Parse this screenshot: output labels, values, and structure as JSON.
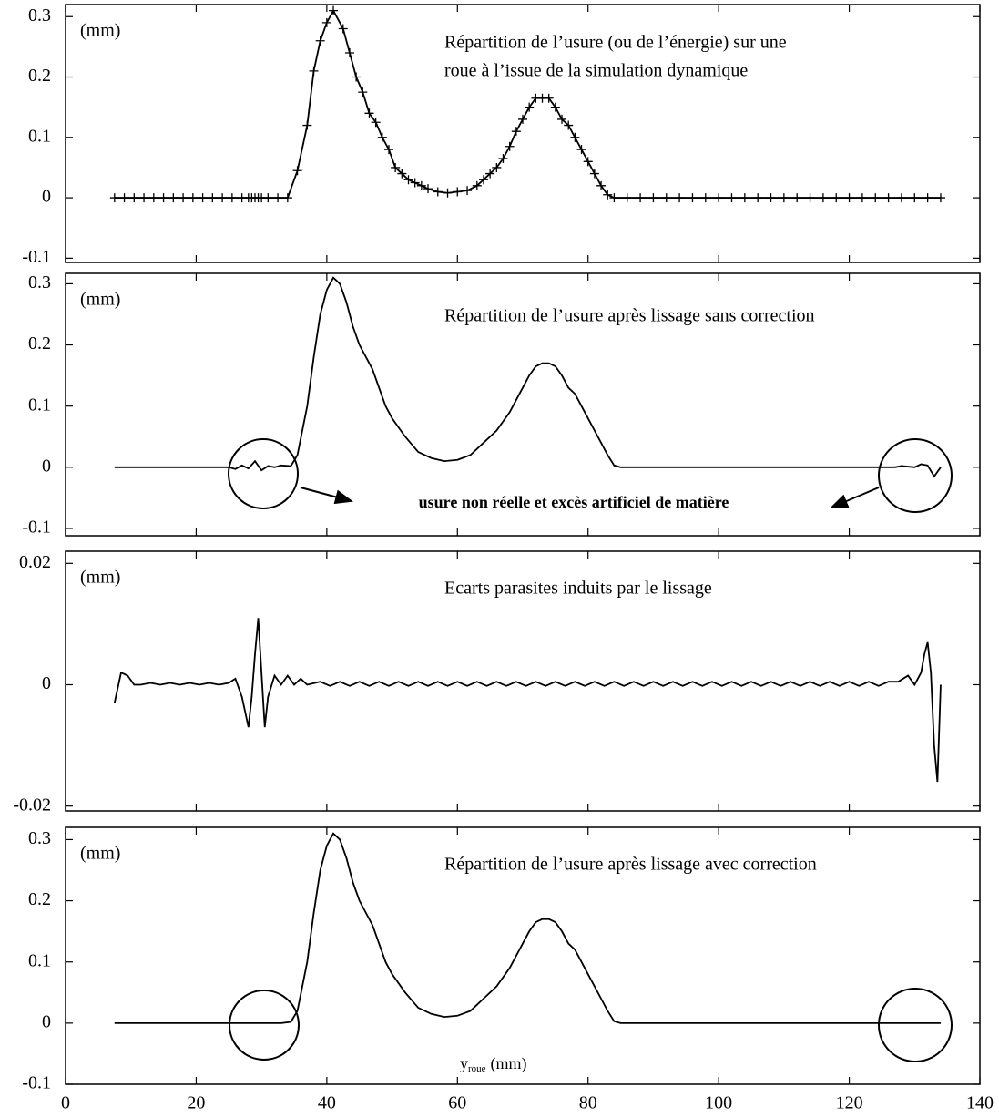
{
  "chart_data": [
    {
      "type": "line",
      "title": [
        "Répartition de l’usure (ou de l’énergie) sur une",
        "roue à l’issue de la simulation dynamique"
      ],
      "ylabel": "(mm)",
      "marker": "+",
      "color": "#000000",
      "xlim": [
        0,
        140
      ],
      "xticks": [
        0,
        20,
        40,
        60,
        80,
        100,
        120,
        140
      ],
      "xtick_labels": false,
      "ylim": [
        -0.107,
        0.32
      ],
      "yticks": [
        -0.1,
        0,
        0.1,
        0.2,
        0.3
      ],
      "x": [
        7.5,
        9,
        10.5,
        12,
        13.5,
        15,
        16.5,
        18,
        19.5,
        21,
        22.5,
        24,
        25.5,
        27,
        28,
        28.5,
        29,
        29.5,
        30,
        31,
        32.5,
        34,
        35.5,
        37,
        38,
        39,
        40,
        41,
        42.5,
        43.5,
        44.5,
        45.5,
        46.5,
        47.5,
        48.5,
        49.5,
        50.5,
        51.5,
        52.5,
        53.5,
        54.5,
        55.5,
        57,
        58.5,
        60,
        61.5,
        63,
        64,
        65,
        66,
        67,
        68,
        69,
        70,
        71,
        72,
        73,
        74,
        75,
        76,
        77,
        78,
        79,
        80,
        81,
        82,
        83,
        84,
        86,
        88,
        90,
        92,
        94,
        96,
        98,
        100,
        102,
        104,
        106,
        108,
        110,
        112,
        114,
        116,
        118,
        120,
        122,
        124,
        126,
        128,
        130,
        132,
        134
      ],
      "values": [
        0,
        0,
        0,
        0,
        0,
        0,
        0,
        0,
        0,
        0,
        0,
        0,
        0,
        0,
        0,
        0,
        0,
        0,
        0,
        0,
        0,
        0,
        0.045,
        0.12,
        0.21,
        0.26,
        0.29,
        0.31,
        0.28,
        0.24,
        0.2,
        0.175,
        0.14,
        0.125,
        0.1,
        0.08,
        0.05,
        0.04,
        0.03,
        0.025,
        0.02,
        0.015,
        0.01,
        0.008,
        0.01,
        0.012,
        0.02,
        0.03,
        0.04,
        0.05,
        0.065,
        0.085,
        0.11,
        0.13,
        0.15,
        0.165,
        0.165,
        0.165,
        0.15,
        0.13,
        0.12,
        0.1,
        0.08,
        0.06,
        0.04,
        0.02,
        0.005,
        0,
        0,
        0,
        0,
        0,
        0,
        0,
        0,
        0,
        0,
        0,
        0,
        0,
        0,
        0,
        0,
        0,
        0,
        0,
        0,
        0,
        0,
        0,
        0,
        0,
        0
      ]
    },
    {
      "type": "line",
      "title": "Répartition de l’usure après lissage sans correction",
      "ylabel": "(mm)",
      "color": "#000000",
      "annotation": "usure non réelle et excès artificiel de matière",
      "xlim": [
        0,
        140
      ],
      "xticks": [
        0,
        20,
        40,
        60,
        80,
        100,
        120,
        140
      ],
      "xtick_labels": false,
      "ylim": [
        -0.112,
        0.317
      ],
      "yticks": [
        -0.1,
        0,
        0.1,
        0.2,
        0.3
      ],
      "x": [
        7.5,
        25,
        26,
        27,
        28,
        29,
        30,
        31,
        32,
        33,
        34.5,
        35.5,
        37,
        38,
        39,
        40,
        41,
        42,
        43,
        44,
        45,
        46,
        47,
        48,
        49,
        50,
        52,
        54,
        56,
        58,
        60,
        62,
        64,
        66,
        68,
        70,
        71,
        72,
        73,
        74,
        75,
        76,
        77,
        78,
        79,
        80,
        81,
        82,
        83,
        84,
        85,
        127,
        128,
        130,
        131,
        132,
        133,
        134
      ],
      "values": [
        0,
        0,
        -0.003,
        0.003,
        -0.002,
        0.01,
        -0.005,
        0.002,
        0,
        0.003,
        0.002,
        0.02,
        0.1,
        0.18,
        0.25,
        0.29,
        0.31,
        0.3,
        0.27,
        0.23,
        0.2,
        0.18,
        0.16,
        0.13,
        0.1,
        0.08,
        0.05,
        0.025,
        0.015,
        0.01,
        0.012,
        0.02,
        0.04,
        0.06,
        0.09,
        0.13,
        0.15,
        0.165,
        0.17,
        0.17,
        0.165,
        0.15,
        0.13,
        0.12,
        0.1,
        0.08,
        0.06,
        0.04,
        0.02,
        0.003,
        0,
        0,
        0.002,
        0,
        0.005,
        0.003,
        -0.015,
        0
      ]
    },
    {
      "type": "line",
      "title": "Ecarts parasites induits par le lissage",
      "ylabel": "(mm)",
      "color": "#000000",
      "xlim": [
        0,
        140
      ],
      "xticks": [
        0,
        20,
        40,
        60,
        80,
        100,
        120,
        140
      ],
      "xtick_labels": false,
      "ylim": [
        -0.0208,
        0.022
      ],
      "yticks": [
        -0.02,
        0,
        0.02
      ],
      "x": [
        7.5,
        8.5,
        9.5,
        10.5,
        11.5,
        13,
        14.5,
        16,
        17.5,
        19,
        20.5,
        22,
        23.5,
        25,
        26,
        27,
        28,
        28.5,
        29,
        29.5,
        30,
        30.5,
        31,
        32,
        33,
        34,
        35,
        36,
        37,
        39,
        40.5,
        42,
        43.5,
        45,
        46.5,
        48,
        49.5,
        51,
        52.5,
        54,
        55.5,
        57,
        58.5,
        60,
        61.5,
        63,
        64.5,
        66,
        67.5,
        69,
        70.5,
        72,
        73.5,
        75,
        76.5,
        78,
        79.5,
        81,
        82.5,
        84,
        85.5,
        87,
        88.5,
        90,
        91.5,
        93,
        94.5,
        96,
        97.5,
        99,
        100.5,
        102,
        103.5,
        105,
        106.5,
        108,
        109.5,
        111,
        112.5,
        114,
        115.5,
        117,
        118.5,
        120,
        121.5,
        123,
        124.5,
        126,
        127.5,
        129,
        130,
        131,
        131.5,
        132,
        132.5,
        133,
        133.5,
        134
      ],
      "values": [
        -0.003,
        0.002,
        0.0015,
        0,
        0,
        0.0003,
        0,
        0.0003,
        0,
        0.0003,
        0,
        0.0003,
        0,
        0.0003,
        0.001,
        -0.002,
        -0.007,
        -0.002,
        0.005,
        0.011,
        0.002,
        -0.007,
        -0.002,
        0.0015,
        0,
        0.0015,
        0,
        0.001,
        0,
        0.0005,
        -0.0002,
        0.0005,
        -0.0002,
        0.0005,
        -0.0002,
        0.0005,
        -0.0002,
        0.0005,
        -0.0002,
        0.0005,
        -0.0002,
        0.0005,
        -0.0002,
        0.0005,
        -0.0002,
        0.0005,
        -0.0002,
        0.0005,
        -0.0002,
        0.0005,
        -0.0002,
        0.0005,
        -0.0002,
        0.0005,
        -0.0002,
        0.0005,
        -0.0002,
        0.0005,
        -0.0002,
        0.0005,
        -0.0002,
        0.0005,
        -0.0002,
        0.0005,
        -0.0002,
        0.0005,
        -0.0002,
        0.0005,
        -0.0002,
        0.0005,
        -0.0002,
        0.0005,
        -0.0002,
        0.0005,
        -0.0002,
        0.0005,
        -0.0002,
        0.0005,
        -0.0002,
        0.0005,
        -0.0002,
        0.0005,
        -0.0002,
        0.0005,
        -0.0002,
        0.0005,
        -0.0002,
        0.0005,
        0.0005,
        0.0015,
        0,
        0.002,
        0.005,
        0.007,
        0.002,
        -0.01,
        -0.016,
        0
      ]
    },
    {
      "type": "line",
      "title": "Répartition de l’usure après lissage avec correction",
      "ylabel": "(mm)",
      "color": "#000000",
      "xlabel_main": "y",
      "xlabel_sub": "roue",
      "xlabel_unit": "(mm)",
      "xlim": [
        0,
        140
      ],
      "xticks": [
        0,
        20,
        40,
        60,
        80,
        100,
        120,
        140
      ],
      "xtick_labels": true,
      "ylim": [
        -0.1,
        0.32
      ],
      "yticks": [
        -0.1,
        0,
        0.1,
        0.2,
        0.3
      ],
      "x": [
        7.5,
        20,
        25,
        33,
        34.5,
        35.5,
        37,
        38,
        39,
        40,
        41,
        42,
        43,
        44,
        45,
        46,
        47,
        48,
        49,
        50,
        52,
        54,
        56,
        58,
        60,
        62,
        64,
        66,
        68,
        70,
        71,
        72,
        73,
        74,
        75,
        76,
        77,
        78,
        79,
        80,
        81,
        82,
        83,
        84,
        85,
        134
      ],
      "values": [
        0,
        0,
        0,
        0,
        0.002,
        0.02,
        0.1,
        0.18,
        0.25,
        0.29,
        0.31,
        0.3,
        0.27,
        0.23,
        0.2,
        0.18,
        0.16,
        0.13,
        0.1,
        0.08,
        0.05,
        0.025,
        0.015,
        0.01,
        0.012,
        0.02,
        0.04,
        0.06,
        0.09,
        0.13,
        0.15,
        0.165,
        0.17,
        0.17,
        0.165,
        0.15,
        0.13,
        0.12,
        0.1,
        0.08,
        0.06,
        0.04,
        0.02,
        0.003,
        0,
        0
      ]
    }
  ]
}
